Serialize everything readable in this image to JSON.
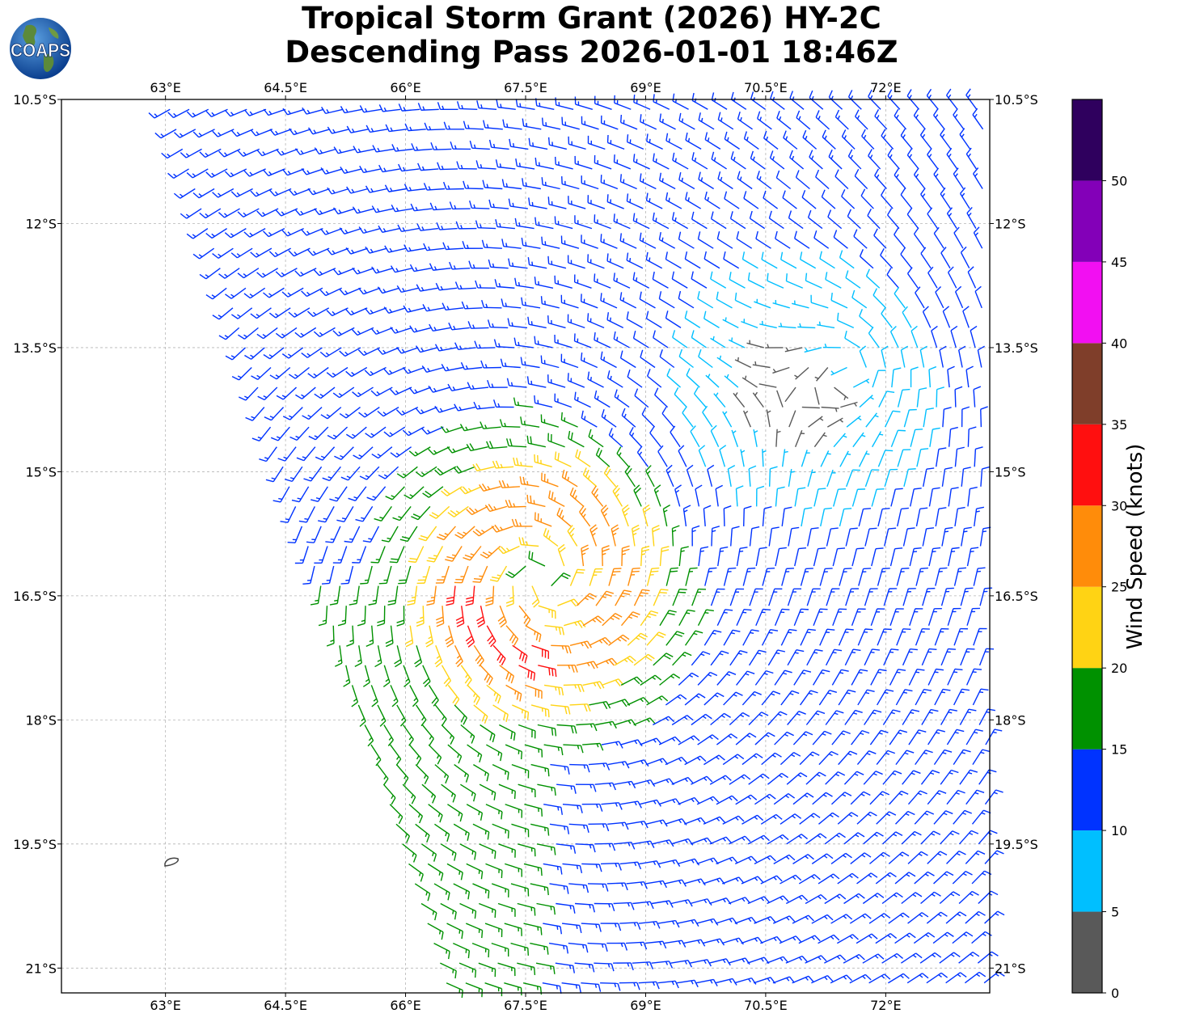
{
  "header": {
    "title_line1": "Tropical Storm Grant (2026) HY-2C",
    "title_line2": "Descending Pass 2026-01-01 18:46Z",
    "logo_text": "COAPS"
  },
  "map": {
    "lon_range": [
      61.7,
      73.3
    ],
    "lat_range": [
      -21.3,
      -10.5
    ],
    "lon_ticks": [
      63,
      64.5,
      66,
      67.5,
      69,
      70.5,
      72
    ],
    "lon_tick_labels": [
      "63°E",
      "64.5°E",
      "66°E",
      "67.5°E",
      "69°E",
      "70.5°E",
      "72°E"
    ],
    "lat_ticks": [
      -10.5,
      -12,
      -13.5,
      -15,
      -16.5,
      -18,
      -19.5,
      -21
    ],
    "lat_tick_labels": [
      "10.5°S",
      "12°S",
      "13.5°S",
      "15°S",
      "16.5°S",
      "18°S",
      "19.5°S",
      "21°S"
    ],
    "gridlines": true,
    "storm_center": {
      "lon": 67.7,
      "lat": -16.3
    },
    "secondary_circulation": {
      "lon": 71.6,
      "lat": -13.8
    },
    "swath_west_edge": [
      [
        63.0,
        -10.6
      ],
      [
        66.5,
        -21.3
      ]
    ],
    "island": {
      "lon": 63.4,
      "lat": -19.7
    }
  },
  "colorbar": {
    "label": "Wind Speed (knots)",
    "bounds": [
      0,
      5,
      10,
      15,
      20,
      25,
      30,
      35,
      40,
      45,
      50,
      55
    ],
    "tick_labels": [
      "0",
      "5",
      "10",
      "15",
      "20",
      "25",
      "30",
      "35",
      "40",
      "45",
      "50"
    ],
    "colors": [
      "#595959",
      "#00bfff",
      "#0033ff",
      "#009100",
      "#ffd314",
      "#ff8c0a",
      "#ff0f0f",
      "#7f3e2a",
      "#f20ff2",
      "#8300b8",
      "#2f005e"
    ]
  }
}
